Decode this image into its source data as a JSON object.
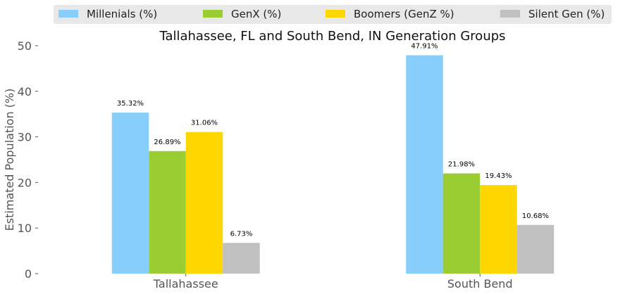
{
  "chart_data": {
    "type": "bar",
    "title": "Tallahassee, FL and South Bend, IN  Generation Groups",
    "xlabel": "",
    "ylabel": "Estimated Population (%)",
    "ylim": [
      0,
      50
    ],
    "yticks": [
      0,
      10,
      20,
      30,
      40,
      50
    ],
    "grid": false,
    "legend_position": "top",
    "categories": [
      "Tallahassee",
      "South Bend"
    ],
    "series": [
      {
        "name": "Millenials (%)",
        "color": "#87CEFA",
        "values": [
          35.32,
          47.91
        ],
        "labels": [
          "35.32%",
          "47.91%"
        ]
      },
      {
        "name": "GenX (%)",
        "color": "#9ACD32",
        "values": [
          26.89,
          21.98
        ],
        "labels": [
          "26.89%",
          "21.98%"
        ]
      },
      {
        "name": "Boomers (GenZ %)",
        "color": "#FFD700",
        "values": [
          31.06,
          19.43
        ],
        "labels": [
          "31.06%",
          "19.43%"
        ]
      },
      {
        "name": "Silent Gen (%)",
        "color": "#C0C0C0",
        "values": [
          6.73,
          10.68
        ],
        "labels": [
          "6.73%",
          "10.68%"
        ]
      }
    ]
  }
}
